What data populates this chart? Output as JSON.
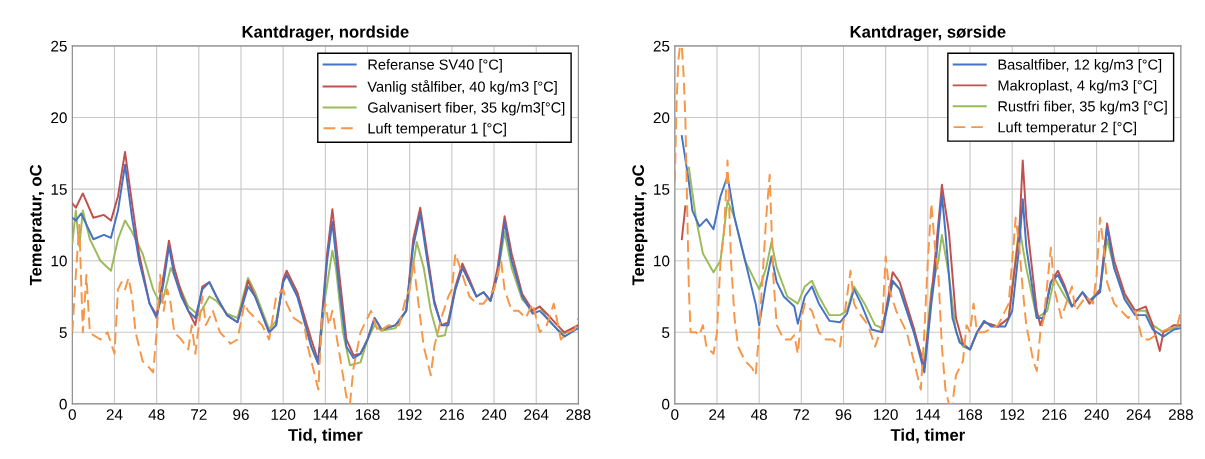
{
  "chart_data": [
    {
      "type": "line",
      "title": "Kantdrager, nordside",
      "xlabel": "Tid, timer",
      "ylabel": "Temepratur, oC",
      "xlim": [
        0,
        288
      ],
      "xticks": [
        0,
        24,
        48,
        72,
        96,
        120,
        144,
        168,
        192,
        216,
        240,
        264,
        288
      ],
      "ylim": [
        0,
        25
      ],
      "yticks": [
        0,
        5,
        10,
        15,
        20,
        25
      ],
      "grid": true,
      "legend": "top right",
      "marker": "none",
      "series": [
        {
          "name": "Referanse SV40 [°C]",
          "color": "#4472c4",
          "line_style": "solid",
          "x": [
            0,
            2,
            5,
            12,
            18,
            22,
            26,
            30,
            34,
            38,
            44,
            48,
            52,
            55,
            58,
            62,
            66,
            70,
            74,
            78,
            82,
            88,
            94,
            100,
            104,
            112,
            116,
            120,
            122,
            128,
            136,
            140,
            145,
            148,
            152,
            156,
            160,
            164,
            168,
            172,
            176,
            184,
            190,
            194,
            198,
            202,
            206,
            210,
            214,
            218,
            222,
            226,
            230,
            234,
            238,
            242,
            246,
            250,
            256,
            262,
            266,
            270,
            276,
            280,
            288
          ],
          "values": [
            13,
            12.8,
            13.3,
            11.5,
            11.8,
            11.6,
            13.5,
            16.7,
            13,
            10,
            7,
            6,
            8.5,
            11,
            9,
            7.5,
            6.5,
            6,
            8,
            8.5,
            7.5,
            6.2,
            5.7,
            8.2,
            7.5,
            5,
            5.5,
            8.5,
            9,
            7.5,
            4,
            2.8,
            10,
            12.7,
            8,
            4,
            3.2,
            3.5,
            4.5,
            6,
            5.2,
            5.5,
            6.5,
            11,
            13.3,
            10,
            7,
            5.5,
            5.5,
            8,
            9.5,
            8.5,
            7.5,
            7.8,
            7.2,
            9,
            12.7,
            10,
            7.5,
            6.3,
            6.5,
            6,
            5.2,
            4.7,
            5.3
          ]
        },
        {
          "name": "Vanlig stålfiber, 40 kg/m3 [°C]",
          "color": "#c0504d",
          "line_style": "solid",
          "x": [
            0,
            2,
            6,
            12,
            18,
            22,
            26,
            30,
            34,
            38,
            44,
            48,
            52,
            55,
            58,
            62,
            66,
            70,
            74,
            78,
            82,
            88,
            94,
            100,
            104,
            112,
            116,
            120,
            122,
            128,
            136,
            140,
            145,
            148,
            152,
            156,
            160,
            164,
            168,
            172,
            176,
            184,
            190,
            194,
            198,
            202,
            206,
            210,
            214,
            218,
            222,
            226,
            230,
            234,
            238,
            242,
            246,
            250,
            256,
            262,
            266,
            270,
            276,
            280,
            288
          ],
          "values": [
            14,
            13.7,
            14.7,
            13,
            13.2,
            12.8,
            14.5,
            17.6,
            14,
            10.5,
            7,
            6.2,
            9,
            11.4,
            9.5,
            7.8,
            6.5,
            5.5,
            8.2,
            8.5,
            7.5,
            6.2,
            5.7,
            8.6,
            7.5,
            5,
            5.5,
            8.7,
            9.3,
            7.8,
            4.5,
            3,
            10.5,
            13.6,
            9,
            4.5,
            3.4,
            3.5,
            4.5,
            6,
            5.2,
            5.5,
            6.5,
            11.5,
            13.7,
            10.5,
            7.2,
            5.5,
            5.7,
            8.2,
            9.8,
            8.7,
            7.5,
            7.8,
            7.2,
            9.5,
            13.1,
            10.5,
            7.7,
            6.5,
            6.8,
            6.3,
            5.5,
            5,
            5.5
          ]
        },
        {
          "name": "Galvanisert fiber, 35 kg/m3[°C]",
          "color": "#9bbb59",
          "line_style": "solid",
          "x": [
            0,
            2,
            4,
            6,
            10,
            16,
            22,
            26,
            30,
            34,
            40,
            46,
            50,
            52,
            56,
            60,
            66,
            72,
            78,
            82,
            88,
            94,
            100,
            104,
            112,
            116,
            120,
            122,
            128,
            136,
            140,
            144,
            148,
            150,
            154,
            158,
            164,
            168,
            172,
            176,
            184,
            190,
            196,
            200,
            204,
            208,
            212,
            218,
            222,
            226,
            230,
            234,
            238,
            242,
            246,
            250,
            256,
            262,
            266,
            270,
            276,
            280,
            288
          ],
          "values": [
            11.2,
            13.5,
            11,
            13.5,
            11.5,
            10,
            9.3,
            11.5,
            12.8,
            12,
            10.5,
            8,
            7,
            7.5,
            9.5,
            8.5,
            6.8,
            6.2,
            7.5,
            7.2,
            6.3,
            6,
            8.8,
            7.8,
            5.2,
            5.8,
            8.5,
            9,
            7.8,
            4,
            2.8,
            7.5,
            10.7,
            9.5,
            5,
            2.7,
            2.9,
            4.5,
            5.5,
            5.1,
            5.3,
            6.5,
            11.3,
            9.5,
            6.5,
            4.7,
            4.8,
            8,
            9.6,
            8.5,
            7.5,
            7.8,
            7.2,
            9,
            12,
            9.5,
            7.3,
            6.5,
            6.8,
            6,
            5.2,
            4.9,
            5.5
          ]
        },
        {
          "name": "Luft temperatur 1 [°C]",
          "color": "#f79646",
          "line_style": "dashed",
          "x": [
            0,
            2,
            4,
            6,
            8,
            10,
            12,
            16,
            20,
            24,
            26,
            28,
            30,
            32,
            34,
            36,
            40,
            44,
            46,
            48,
            50,
            52,
            54,
            56,
            58,
            62,
            66,
            68,
            70,
            72,
            74,
            76,
            80,
            84,
            88,
            90,
            94,
            98,
            100,
            104,
            108,
            112,
            116,
            120,
            122,
            126,
            132,
            134,
            138,
            140,
            142,
            144,
            146,
            148,
            150,
            152,
            156,
            158,
            160,
            164,
            168,
            170,
            174,
            180,
            186,
            190,
            192,
            194,
            196,
            198,
            200,
            204,
            206,
            210,
            214,
            216,
            218,
            222,
            226,
            230,
            234,
            240,
            244,
            246,
            250,
            254,
            258,
            262,
            266,
            270,
            274,
            278,
            282,
            286,
            288
          ],
          "values": [
            5,
            9,
            12.5,
            5,
            9,
            5,
            4.8,
            4.5,
            5,
            3.5,
            8,
            8.5,
            8,
            8.8,
            7.5,
            5,
            3,
            2.5,
            2.2,
            5,
            9,
            6.5,
            8,
            7,
            5,
            4.5,
            3.8,
            5.5,
            3.5,
            5.5,
            7.5,
            5.5,
            6.5,
            5,
            4.5,
            4.2,
            4.5,
            7,
            6.5,
            6,
            5.5,
            4.5,
            7.5,
            8,
            7,
            6,
            5.5,
            4,
            2,
            1,
            6,
            7,
            5.5,
            6.5,
            5,
            3.5,
            0.5,
            0,
            2.5,
            5,
            6,
            6.5,
            5,
            5.5,
            5.5,
            7.5,
            8,
            10,
            8,
            6,
            4,
            2,
            4,
            6,
            7.5,
            8,
            10.5,
            9,
            7.5,
            7,
            7,
            8,
            10,
            8,
            6.5,
            6.5,
            6,
            7,
            5,
            5.5,
            7,
            4.5,
            5,
            5.2,
            6
          ]
        }
      ]
    },
    {
      "type": "line",
      "title": "Kantdrager, sørside",
      "xlabel": "Tid, timer",
      "ylabel": "Temepratur, oC",
      "xlim": [
        0,
        288
      ],
      "xticks": [
        0,
        24,
        48,
        72,
        96,
        120,
        144,
        168,
        192,
        216,
        240,
        264,
        288
      ],
      "ylim": [
        0,
        25
      ],
      "yticks": [
        0,
        5,
        10,
        15,
        20,
        25
      ],
      "grid": true,
      "legend": "top right",
      "marker": "none",
      "series": [
        {
          "name": "Basaltfiber, 12 kg/m3 [°C]",
          "color": "#4472c4",
          "line_style": "solid",
          "x": [
            4,
            8,
            10,
            14,
            18,
            22,
            26,
            30,
            34,
            40,
            46,
            48,
            50,
            52,
            55,
            58,
            62,
            68,
            70,
            74,
            78,
            82,
            88,
            94,
            98,
            102,
            106,
            112,
            118,
            124,
            128,
            136,
            142,
            146,
            148,
            150,
            152,
            154,
            158,
            162,
            168,
            172,
            176,
            180,
            188,
            192,
            196,
            198,
            200,
            206,
            210,
            214,
            218,
            222,
            226,
            232,
            236,
            242,
            244,
            246,
            250,
            256,
            262,
            268,
            272,
            278,
            284,
            288
          ],
          "values": [
            18.7,
            15.5,
            13.5,
            12.4,
            12.9,
            12.2,
            14.5,
            15.9,
            13,
            10,
            7,
            5.5,
            7,
            8.5,
            10.3,
            8.5,
            7.5,
            6.8,
            5.6,
            7.5,
            8.2,
            7,
            5.8,
            5.7,
            6.3,
            8,
            7,
            5.2,
            5,
            8.6,
            8,
            5,
            2.2,
            7,
            9,
            12,
            14.6,
            12,
            6,
            4.3,
            3.8,
            5,
            5.8,
            5.4,
            5.4,
            6.5,
            11,
            14.3,
            11,
            6,
            6,
            8.5,
            9,
            8,
            6.8,
            7.8,
            7.2,
            7.8,
            10,
            12.3,
            9.5,
            7.3,
            6.2,
            6.2,
            5.2,
            4.7,
            5.2,
            5.3
          ]
        },
        {
          "name": "Makroplast, 4 kg/m3 [°C]",
          "color": "#c0504d",
          "line_style": "solid",
          "x": [
            4,
            6,
            8,
            118,
            124,
            128,
            136,
            142,
            148,
            152,
            156,
            160,
            164,
            168,
            172,
            176,
            184,
            190,
            196,
            198,
            200,
            206,
            208,
            210,
            214,
            218,
            222,
            226,
            232,
            236,
            242,
            246,
            250,
            256,
            262,
            268,
            272,
            276,
            278,
            284,
            288
          ],
          "values": [
            11.5,
            13.8,
            null,
            5.1,
            9.2,
            8.5,
            5.3,
            2.5,
            10,
            15.3,
            12,
            6,
            4.2,
            3.8,
            5,
            5.7,
            5.4,
            6,
            12,
            17,
            13,
            6.5,
            5.5,
            6.2,
            8.5,
            9.3,
            8.2,
            6.8,
            7.8,
            7,
            8,
            12.6,
            10,
            7.7,
            6.5,
            6.8,
            5.5,
            3.7,
            5,
            5.5,
            5.5
          ]
        },
        {
          "name": "Rustfri fiber, 35 kg/m3 [°C]",
          "color": "#9bbb59",
          "line_style": "solid",
          "x": [
            8,
            12,
            16,
            22,
            26,
            30,
            34,
            40,
            48,
            52,
            55,
            58,
            64,
            70,
            74,
            78,
            82,
            88,
            94,
            98,
            102,
            108,
            114,
            118,
            124,
            128,
            136,
            142,
            146,
            150,
            152,
            156,
            160,
            164,
            168,
            172,
            176,
            184,
            190,
            196,
            200,
            206,
            212,
            216,
            222,
            226,
            232,
            236,
            242,
            246,
            250,
            256,
            262,
            268,
            272,
            278,
            284,
            288
          ],
          "values": [
            16.5,
            13,
            10.5,
            9.2,
            10,
            14.2,
            13,
            10,
            8,
            9.5,
            11.3,
            9.5,
            7.5,
            7,
            8.2,
            8.6,
            7.5,
            6.2,
            6.2,
            6.5,
            8.2,
            7,
            5.5,
            5.3,
            8.5,
            8,
            5,
            2.8,
            8,
            10,
            11.8,
            9,
            5,
            4,
            3.8,
            5,
            5.7,
            5.4,
            6,
            12.4,
            9.5,
            6,
            6.5,
            8.8,
            7.5,
            6.8,
            7.8,
            7.2,
            8,
            11.5,
            9.5,
            7.5,
            6.5,
            6.5,
            5.5,
            5,
            5.3,
            5.5
          ]
        },
        {
          "name": "Luft temperatur 2 [°C]",
          "color": "#f79646",
          "line_style": "dashed",
          "x": [
            0,
            1,
            2,
            3,
            4,
            5,
            6,
            7,
            8,
            9,
            12,
            14,
            16,
            18,
            22,
            24,
            26,
            28,
            30,
            32,
            34,
            36,
            40,
            44,
            46,
            48,
            50,
            52,
            54,
            56,
            58,
            62,
            66,
            68,
            70,
            72,
            74,
            78,
            82,
            86,
            90,
            94,
            98,
            100,
            102,
            104,
            110,
            114,
            118,
            120,
            122,
            126,
            132,
            136,
            140,
            142,
            144,
            146,
            148,
            150,
            152,
            154,
            156,
            158,
            160,
            164,
            166,
            168,
            170,
            172,
            176,
            184,
            190,
            192,
            194,
            196,
            198,
            200,
            204,
            206,
            208,
            210,
            214,
            216,
            220,
            224,
            226,
            228,
            234,
            238,
            240,
            242,
            244,
            246,
            250,
            254,
            258,
            262,
            266,
            270,
            276,
            280,
            286,
            288
          ],
          "values": [
            15.5,
            21,
            24,
            25,
            25,
            23,
            20,
            14,
            8,
            5,
            5,
            4.8,
            5.5,
            4,
            3.5,
            5,
            10,
            12,
            17,
            10,
            6,
            4,
            3,
            2.5,
            2,
            5,
            9,
            13,
            16,
            9,
            5.5,
            4.5,
            4.5,
            4.8,
            3.5,
            6,
            7,
            6.5,
            5,
            4.5,
            4.5,
            4,
            7.5,
            9.3,
            7,
            6.5,
            5.5,
            4,
            5.5,
            10.3,
            8,
            6.5,
            5,
            3,
            1,
            5,
            10,
            14,
            11,
            9,
            4,
            1,
            0,
            0,
            2,
            3,
            5.5,
            5,
            7,
            5,
            5,
            5.5,
            7,
            10,
            13,
            11,
            8,
            5.5,
            3,
            2.3,
            5,
            6,
            10.9,
            8,
            6,
            7.5,
            8.2,
            6.5,
            7.5,
            7,
            9,
            13,
            11,
            8.5,
            7,
            6.5,
            6,
            6.5,
            4.5,
            4.5,
            5,
            5.2,
            5.5,
            6.5
          ]
        }
      ]
    }
  ]
}
